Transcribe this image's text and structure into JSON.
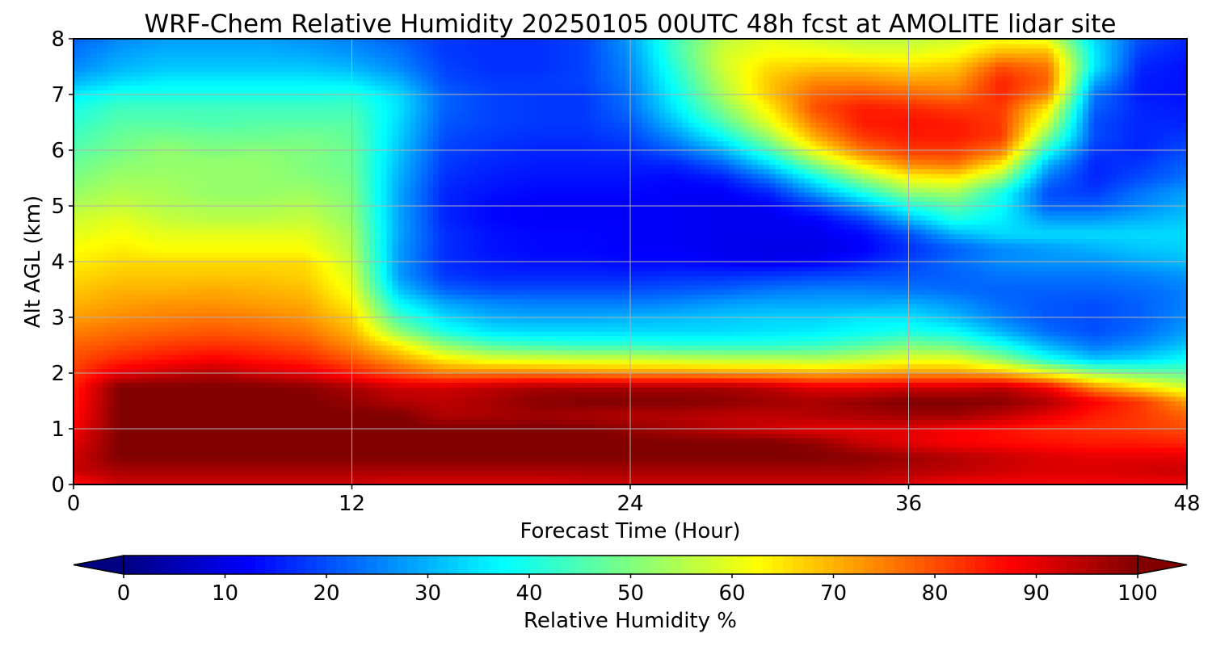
{
  "chart_data": {
    "type": "heatmap",
    "title": "WRF-Chem Relative Humidity 20250105 00UTC 48h fcst at AMOLITE lidar site",
    "xlabel": "Forecast Time (Hour)",
    "ylabel": "Alt AGL (km)",
    "xlim": [
      0,
      48
    ],
    "ylim": [
      0,
      8
    ],
    "xticks": [
      0,
      12,
      24,
      36,
      48
    ],
    "yticks": [
      0,
      1,
      2,
      3,
      4,
      5,
      6,
      7,
      8
    ],
    "grid": true,
    "colormap": "jet",
    "colorbar": {
      "label": "Relative Humidity %",
      "range": [
        0,
        100
      ],
      "ticks": [
        0,
        10,
        20,
        30,
        40,
        50,
        60,
        70,
        80,
        90,
        100
      ],
      "extend": "both",
      "orientation": "horizontal"
    },
    "x": [
      0,
      2,
      4,
      6,
      8,
      10,
      12,
      14,
      16,
      18,
      20,
      22,
      24,
      26,
      28,
      30,
      32,
      34,
      36,
      38,
      40,
      42,
      44,
      46,
      48
    ],
    "y": [
      0,
      0.25,
      0.5,
      0.75,
      1,
      1.25,
      1.5,
      1.75,
      2,
      2.25,
      2.5,
      2.75,
      3,
      3.25,
      3.5,
      3.75,
      4,
      4.25,
      4.5,
      4.75,
      5,
      5.25,
      5.5,
      5.75,
      6,
      6.25,
      6.5,
      6.75,
      7,
      7.25,
      7.5,
      7.75,
      8
    ],
    "z": [
      [
        85,
        92,
        92,
        92,
        92,
        92,
        92,
        90,
        90,
        90,
        90,
        92,
        92,
        92,
        92,
        92,
        92,
        92,
        90,
        88,
        88,
        88,
        88,
        88,
        88
      ],
      [
        93,
        96,
        96,
        96,
        96,
        96,
        96,
        96,
        96,
        96,
        96,
        96,
        96,
        96,
        96,
        96,
        96,
        96,
        95,
        94,
        92,
        91,
        91,
        92,
        93
      ],
      [
        92,
        100,
        100,
        100,
        100,
        100,
        100,
        100,
        100,
        100,
        100,
        100,
        100,
        100,
        100,
        100,
        100,
        99,
        97,
        95,
        93,
        91,
        90,
        90,
        90
      ],
      [
        90,
        100,
        100,
        100,
        100,
        100,
        100,
        100,
        100,
        100,
        100,
        100,
        100,
        100,
        100,
        100,
        98,
        93,
        90,
        88,
        87,
        86,
        85,
        85,
        84
      ],
      [
        88,
        100,
        100,
        100,
        100,
        100,
        100,
        100,
        100,
        100,
        100,
        100,
        98,
        96,
        94,
        92,
        90,
        90,
        90,
        88,
        86,
        84,
        83,
        82,
        80
      ],
      [
        86,
        100,
        100,
        100,
        100,
        100,
        100,
        100,
        95,
        96,
        97,
        96,
        95,
        95,
        94,
        94,
        95,
        96,
        97,
        97,
        94,
        90,
        85,
        82,
        78
      ],
      [
        85,
        100,
        100,
        100,
        100,
        100,
        98,
        95,
        94,
        96,
        99,
        100,
        100,
        100,
        99,
        97,
        96,
        98,
        100,
        100,
        99,
        95,
        88,
        82,
        72
      ],
      [
        84,
        100,
        100,
        100,
        100,
        99,
        96,
        92,
        92,
        94,
        96,
        96,
        96,
        96,
        96,
        94,
        90,
        90,
        92,
        92,
        94,
        88,
        74,
        66,
        58
      ],
      [
        82,
        90,
        93,
        95,
        92,
        90,
        85,
        80,
        76,
        76,
        76,
        75,
        74,
        74,
        73,
        72,
        71,
        72,
        73,
        73,
        70,
        62,
        53,
        49,
        47
      ],
      [
        80,
        84,
        86,
        88,
        86,
        84,
        79,
        72,
        64,
        60,
        59,
        58,
        58,
        57,
        56,
        56,
        55,
        57,
        60,
        60,
        52,
        40,
        32,
        34,
        38
      ],
      [
        78,
        80,
        82,
        83,
        82,
        80,
        74,
        64,
        52,
        46,
        44,
        43,
        43,
        42,
        42,
        42,
        43,
        46,
        50,
        48,
        40,
        30,
        24,
        27,
        32
      ],
      [
        75,
        77,
        78,
        79,
        78,
        76,
        70,
        52,
        40,
        35,
        34,
        34,
        34,
        34,
        34,
        35,
        36,
        38,
        40,
        38,
        30,
        23,
        20,
        23,
        28
      ],
      [
        72,
        74,
        75,
        76,
        75,
        73,
        67,
        44,
        34,
        30,
        29,
        29,
        30,
        31,
        32,
        33,
        33,
        35,
        35,
        31,
        25,
        21,
        20,
        22,
        26
      ],
      [
        70,
        72,
        73,
        73,
        72,
        71,
        64,
        38,
        29,
        26,
        25,
        25,
        25,
        26,
        28,
        29,
        29,
        29,
        30,
        27,
        23,
        21,
        20,
        22,
        25
      ],
      [
        68,
        70,
        70,
        71,
        70,
        69,
        61,
        32,
        22,
        20,
        20,
        20,
        20,
        21,
        22,
        24,
        25,
        25,
        24,
        23,
        22,
        22,
        22,
        23,
        25
      ],
      [
        66,
        68,
        68,
        68,
        68,
        67,
        59,
        28,
        18,
        16,
        16,
        16,
        16,
        17,
        17,
        18,
        19,
        20,
        21,
        22,
        24,
        24,
        24,
        25,
        27
      ],
      [
        64,
        66,
        66,
        66,
        66,
        66,
        57,
        28,
        17,
        15,
        14,
        14,
        13,
        13,
        12,
        11,
        12,
        15,
        19,
        23,
        26,
        27,
        27,
        29,
        31
      ],
      [
        62,
        64,
        62,
        62,
        62,
        62,
        55,
        28,
        17,
        14,
        13,
        13,
        12,
        12,
        11,
        10,
        10,
        12,
        17,
        22,
        26,
        28,
        30,
        32,
        33
      ],
      [
        60,
        62,
        60,
        60,
        60,
        60,
        54,
        29,
        17,
        14,
        13,
        13,
        12,
        12,
        11,
        11,
        11,
        13,
        20,
        30,
        34,
        34,
        34,
        34,
        34
      ],
      [
        58,
        60,
        57,
        56,
        56,
        57,
        52,
        29,
        16,
        13,
        12,
        12,
        12,
        12,
        11,
        11,
        12,
        18,
        30,
        40,
        36,
        28,
        28,
        30,
        32
      ],
      [
        55,
        57,
        55,
        54,
        54,
        55,
        51,
        29,
        16,
        13,
        12,
        12,
        12,
        12,
        11,
        12,
        18,
        28,
        40,
        46,
        38,
        22,
        22,
        26,
        30
      ],
      [
        52,
        55,
        54,
        52,
        52,
        53,
        50,
        29,
        16,
        14,
        13,
        13,
        13,
        12,
        12,
        16,
        28,
        40,
        52,
        54,
        40,
        20,
        18,
        24,
        28
      ],
      [
        50,
        53,
        53,
        52,
        52,
        51,
        49,
        30,
        17,
        15,
        14,
        14,
        14,
        13,
        15,
        24,
        38,
        52,
        62,
        64,
        52,
        24,
        16,
        20,
        24
      ],
      [
        48,
        51,
        52,
        52,
        52,
        50,
        48,
        31,
        18,
        16,
        15,
        15,
        15,
        16,
        22,
        34,
        50,
        64,
        74,
        76,
        64,
        30,
        16,
        18,
        22
      ],
      [
        46,
        49,
        52,
        50,
        51,
        50,
        48,
        32,
        19,
        17,
        16,
        16,
        17,
        22,
        30,
        44,
        62,
        76,
        82,
        82,
        76,
        40,
        18,
        16,
        20
      ],
      [
        44,
        48,
        49,
        48,
        48,
        49,
        47,
        33,
        20,
        18,
        17,
        17,
        19,
        27,
        38,
        53,
        71,
        82,
        85,
        85,
        82,
        50,
        20,
        16,
        18
      ],
      [
        42,
        46,
        46,
        45,
        46,
        46,
        46,
        34,
        21,
        19,
        18,
        18,
        21,
        32,
        45,
        60,
        76,
        85,
        86,
        85,
        82,
        58,
        20,
        16,
        16
      ],
      [
        40,
        44,
        44,
        44,
        44,
        44,
        44,
        35,
        22,
        19,
        18,
        18,
        23,
        36,
        50,
        64,
        80,
        85,
        84,
        82,
        82,
        64,
        22,
        16,
        15
      ],
      [
        36,
        40,
        40,
        40,
        40,
        40,
        41,
        34,
        22,
        19,
        18,
        18,
        24,
        38,
        54,
        68,
        78,
        80,
        78,
        76,
        84,
        74,
        24,
        15,
        14
      ],
      [
        30,
        34,
        36,
        36,
        36,
        36,
        35,
        30,
        20,
        18,
        18,
        19,
        25,
        40,
        56,
        68,
        74,
        74,
        72,
        72,
        84,
        78,
        30,
        15,
        14
      ],
      [
        26,
        30,
        32,
        32,
        32,
        32,
        30,
        26,
        19,
        17,
        17,
        19,
        26,
        42,
        58,
        66,
        68,
        68,
        66,
        68,
        80,
        76,
        36,
        16,
        14
      ],
      [
        24,
        28,
        30,
        30,
        30,
        29,
        27,
        24,
        18,
        17,
        17,
        19,
        27,
        44,
        58,
        62,
        62,
        60,
        60,
        62,
        70,
        70,
        36,
        18,
        15
      ],
      [
        22,
        26,
        28,
        28,
        28,
        27,
        25,
        22,
        18,
        17,
        17,
        19,
        28,
        44,
        56,
        60,
        58,
        56,
        56,
        58,
        62,
        60,
        34,
        20,
        16
      ]
    ]
  }
}
